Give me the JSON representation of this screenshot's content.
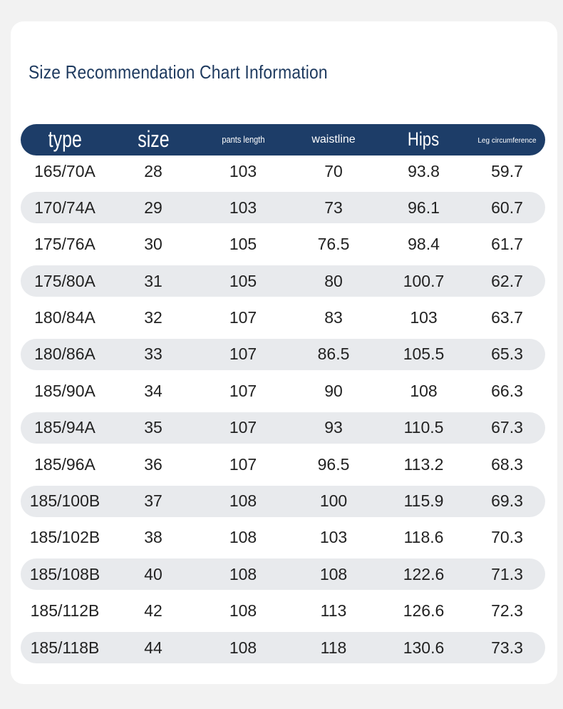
{
  "title": "Size Recommendation Chart Information",
  "headers": {
    "type": "type",
    "size": "size",
    "pants_length": "pants length",
    "waistline": "waistline",
    "hips": "Hips",
    "leg": "Leg circumference"
  },
  "rows": [
    [
      "165/70A",
      "28",
      "103",
      "70",
      "93.8",
      "59.7"
    ],
    [
      "170/74A",
      "29",
      "103",
      "73",
      "96.1",
      "60.7"
    ],
    [
      "175/76A",
      "30",
      "105",
      "76.5",
      "98.4",
      "61.7"
    ],
    [
      "175/80A",
      "31",
      "105",
      "80",
      "100.7",
      "62.7"
    ],
    [
      "180/84A",
      "32",
      "107",
      "83",
      "103",
      "63.7"
    ],
    [
      "180/86A",
      "33",
      "107",
      "86.5",
      "105.5",
      "65.3"
    ],
    [
      "185/90A",
      "34",
      "107",
      "90",
      "108",
      "66.3"
    ],
    [
      "185/94A",
      "35",
      "107",
      "93",
      "110.5",
      "67.3"
    ],
    [
      "185/96A",
      "36",
      "107",
      "96.5",
      "113.2",
      "68.3"
    ],
    [
      "185/100B",
      "37",
      "108",
      "100",
      "115.9",
      "69.3"
    ],
    [
      "185/102B",
      "38",
      "108",
      "103",
      "118.6",
      "70.3"
    ],
    [
      "185/108B",
      "40",
      "108",
      "108",
      "122.6",
      "71.3"
    ],
    [
      "185/112B",
      "42",
      "108",
      "113",
      "126.6",
      "72.3"
    ],
    [
      "185/118B",
      "44",
      "108",
      "118",
      "130.6",
      "73.3"
    ]
  ]
}
